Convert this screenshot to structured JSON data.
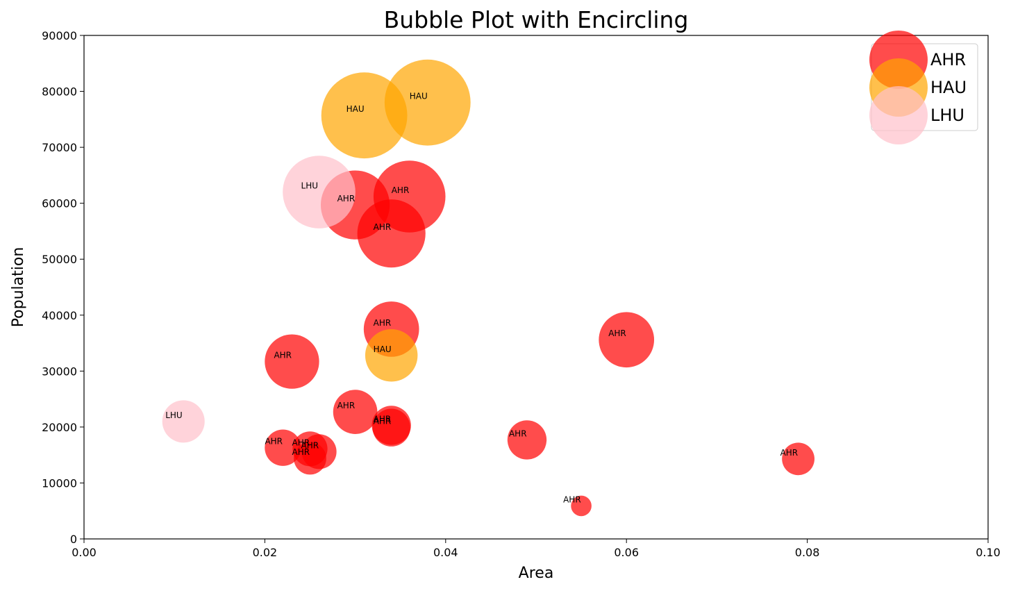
{
  "chart_data": {
    "type": "scatter",
    "title": "Bubble Plot with Encircling",
    "xlabel": "Area",
    "ylabel": "Population",
    "xlim": [
      0.0,
      0.1
    ],
    "ylim": [
      0,
      90000
    ],
    "xticks": [
      "0.00",
      "0.02",
      "0.04",
      "0.06",
      "0.08",
      "0.10"
    ],
    "yticks": [
      "0",
      "10000",
      "20000",
      "30000",
      "40000",
      "50000",
      "60000",
      "70000",
      "80000",
      "90000"
    ],
    "grid": false,
    "legend_position": "top-right",
    "series": [
      {
        "name": "AHR",
        "color": "#ff0000",
        "points": [
          {
            "x": 0.03,
            "y": 59700,
            "size": 4500
          },
          {
            "x": 0.036,
            "y": 61200,
            "size": 4900
          },
          {
            "x": 0.034,
            "y": 54600,
            "size": 4400
          },
          {
            "x": 0.034,
            "y": 37500,
            "size": 2900
          },
          {
            "x": 0.06,
            "y": 35600,
            "size": 2900
          },
          {
            "x": 0.023,
            "y": 31700,
            "size": 2800
          },
          {
            "x": 0.03,
            "y": 22700,
            "size": 1850
          },
          {
            "x": 0.034,
            "y": 20300,
            "size": 1450
          },
          {
            "x": 0.034,
            "y": 19900,
            "size": 1350
          },
          {
            "x": 0.049,
            "y": 17700,
            "size": 1450
          },
          {
            "x": 0.022,
            "y": 16300,
            "size": 1250
          },
          {
            "x": 0.025,
            "y": 16100,
            "size": 1150
          },
          {
            "x": 0.026,
            "y": 15600,
            "size": 1150
          },
          {
            "x": 0.025,
            "y": 14400,
            "size": 1000
          },
          {
            "x": 0.079,
            "y": 14300,
            "size": 1000
          },
          {
            "x": 0.055,
            "y": 5900,
            "size": 400
          }
        ]
      },
      {
        "name": "HAU",
        "color": "#ffa500",
        "points": [
          {
            "x": 0.031,
            "y": 75700,
            "size": 7000
          },
          {
            "x": 0.038,
            "y": 78000,
            "size": 7000
          },
          {
            "x": 0.034,
            "y": 32800,
            "size": 2600
          }
        ]
      },
      {
        "name": "LHU",
        "color": "#ffc0cb",
        "points": [
          {
            "x": 0.026,
            "y": 62000,
            "size": 5000
          },
          {
            "x": 0.011,
            "y": 21000,
            "size": 1700
          }
        ]
      }
    ]
  }
}
